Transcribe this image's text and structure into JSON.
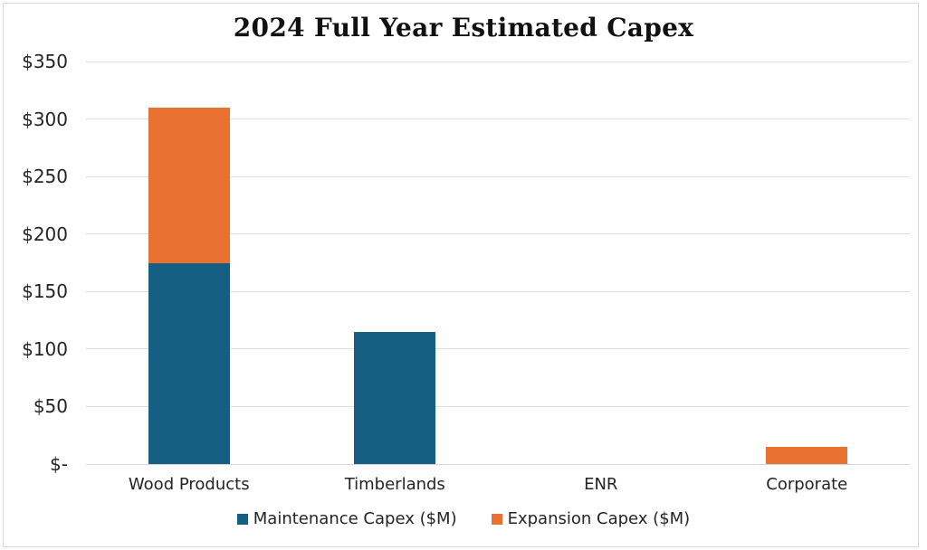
{
  "chart_data": {
    "type": "bar",
    "stacked": true,
    "title": "2024 Full Year Estimated Capex",
    "categories": [
      "Wood Products",
      "Timberlands",
      "ENR",
      "Corporate"
    ],
    "series": [
      {
        "name": "Maintenance Capex ($M)",
        "color": "#156082",
        "values": [
          175,
          115,
          0,
          0
        ]
      },
      {
        "name": "Expansion Capex ($M)",
        "color": "#E97132",
        "values": [
          135,
          0,
          0,
          15
        ]
      }
    ],
    "ylim": [
      0,
      350
    ],
    "ytick_step": 50,
    "ytick_labels": [
      "$-",
      "$50",
      "$100",
      "$150",
      "$200",
      "$250",
      "$300",
      "$350"
    ],
    "grid": true,
    "gridline_color": "#DEDEDE",
    "legend_position": "bottom",
    "totals_by_category": [
      310,
      115,
      0,
      15
    ]
  }
}
